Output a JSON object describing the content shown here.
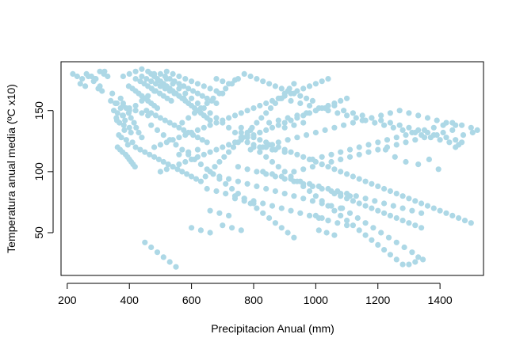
{
  "chart_data": {
    "type": "scatter",
    "title": "",
    "xlabel": "Precipitacion Anual (mm)",
    "ylabel": "Temperatura anual media (ºC x10)",
    "xlim": [
      180,
      1540
    ],
    "ylim": [
      15,
      190
    ],
    "xticks": [
      200,
      400,
      600,
      800,
      1000,
      1200,
      1400
    ],
    "yticks": [
      50,
      100,
      150
    ],
    "grid": false,
    "legend": "none",
    "point_color": "#ADD8E6",
    "points_x": [
      218,
      232,
      248,
      262,
      278,
      292,
      305,
      318,
      242,
      258,
      285,
      300,
      312,
      268,
      290,
      305,
      320,
      330,
      345,
      340,
      355,
      350,
      358,
      362,
      368,
      372,
      378,
      382,
      386,
      366,
      374,
      384,
      390,
      395,
      400,
      405,
      410,
      362,
      370,
      378,
      388,
      394,
      400,
      406,
      412,
      418,
      372,
      380,
      390,
      398,
      405,
      415,
      422,
      430,
      440,
      398,
      410,
      420,
      430,
      440,
      450,
      460,
      470,
      480,
      490,
      420,
      435,
      448,
      460,
      472,
      485,
      498,
      510,
      522,
      535,
      440,
      455,
      470,
      485,
      500,
      515,
      530,
      545,
      560,
      575,
      470,
      480,
      490,
      500,
      510,
      520,
      530,
      540,
      550,
      560,
      570,
      580,
      590,
      600,
      610,
      620,
      630,
      640,
      650,
      660,
      500,
      515,
      530,
      545,
      560,
      575,
      590,
      605,
      620,
      635,
      650,
      665,
      680,
      520,
      540,
      560,
      580,
      600,
      620,
      640,
      660,
      680,
      700,
      455,
      470,
      485,
      500,
      515,
      530,
      545,
      560,
      575,
      590,
      605,
      620,
      635,
      650,
      420,
      435,
      450,
      465,
      480,
      495,
      510,
      525,
      540,
      555,
      570,
      585,
      600,
      615,
      630,
      645,
      660,
      675,
      690,
      705,
      720,
      735,
      750,
      765,
      780,
      795,
      810,
      825,
      840,
      855,
      870,
      885,
      900,
      915,
      930,
      680,
      700,
      720,
      740,
      760,
      780,
      800,
      820,
      840,
      860,
      880,
      900,
      920,
      940,
      960,
      980,
      1000,
      1020,
      1040,
      1060,
      1080,
      1100,
      1120,
      1140,
      1160,
      1180,
      1200,
      1220,
      1240,
      1260,
      1280,
      1300,
      1320,
      1340,
      1360,
      1380,
      1400,
      1420,
      1440,
      1460,
      1480,
      1500,
      700,
      730,
      760,
      790,
      820,
      850,
      880,
      910,
      940,
      970,
      1000,
      1030,
      1060,
      1090,
      1120,
      1150,
      1180,
      1210,
      1240,
      1270,
      1300,
      1330,
      1360,
      1390,
      1420,
      1450,
      760,
      790,
      820,
      850,
      880,
      910,
      940,
      970,
      1000,
      1030,
      1060,
      1090,
      1120,
      1150,
      1180,
      1210,
      1240,
      1270,
      1300,
      1330,
      1360,
      1390,
      1420,
      1450,
      1470,
      800,
      830,
      860,
      890,
      920,
      950,
      980,
      1010,
      1040,
      1070,
      1100,
      1130,
      1160,
      1190,
      1220,
      1250,
      1280,
      1310,
      1340,
      1370,
      1400,
      1430,
      1460,
      840,
      870,
      900,
      930,
      960,
      990,
      1020,
      1050,
      1080,
      1110,
      1140,
      1170,
      1200,
      1230,
      1260,
      1290,
      1320,
      1350,
      1380,
      1410,
      1440,
      900,
      930,
      960,
      990,
      1020,
      1050,
      1080,
      1110,
      1140,
      1170,
      1200,
      1230,
      1260,
      1290,
      1320,
      1350,
      1380,
      1410,
      1440,
      1470,
      1500,
      1520,
      1505,
      1475,
      1450,
      1395,
      1365,
      1330,
      1290,
      1255,
      1225,
      560,
      590,
      620,
      650,
      680,
      710,
      740,
      770,
      800,
      830,
      860,
      890,
      920,
      950,
      980,
      1010,
      1040,
      1070,
      1100,
      600,
      630,
      660,
      690,
      720,
      750,
      780,
      810,
      840,
      870,
      900,
      930,
      960,
      990,
      1020,
      1050,
      1080,
      660,
      690,
      720,
      750,
      780,
      810,
      840,
      870,
      900,
      930,
      960,
      990,
      1020,
      1050,
      1080,
      1110,
      740,
      770,
      800,
      830,
      860,
      890,
      920,
      950,
      980,
      1010,
      1040,
      1070,
      1100,
      1130,
      1160,
      1190,
      1220,
      1250,
      1280,
      1310,
      1340,
      1000,
      1020,
      1040,
      1060,
      1080,
      1100,
      1120,
      1140,
      1160,
      1180,
      1200,
      1220,
      1240,
      1260,
      1280,
      1300,
      1320,
      1340,
      1010,
      1035,
      1060,
      1085,
      1110,
      1135,
      1160,
      1185,
      1210,
      1235,
      1260,
      1285,
      1310,
      1330,
      1345,
      1320,
      1300,
      1280,
      1260,
      1240,
      1220,
      1200,
      1180,
      1160,
      1140,
      1120,
      1100,
      1080,
      1060,
      1040,
      1020,
      1000,
      980,
      960,
      940,
      920,
      900,
      880,
      860,
      840,
      820,
      800,
      780,
      760,
      740,
      720,
      700,
      680,
      660,
      640,
      620,
      600,
      580,
      560,
      540,
      520,
      500,
      480,
      460,
      440,
      420,
      400,
      380,
      360,
      470,
      490,
      510,
      530,
      550,
      570,
      590,
      610,
      630,
      650,
      670,
      690,
      710,
      730,
      750,
      770,
      790,
      810,
      830,
      850,
      870,
      890,
      910,
      930,
      450,
      470,
      490,
      510,
      530,
      550,
      570,
      590,
      610,
      630,
      650,
      670,
      690,
      710,
      730,
      750,
      770,
      790,
      810,
      830,
      850,
      870,
      890,
      910,
      930,
      950,
      970,
      990,
      360,
      380,
      400,
      420,
      440,
      460,
      480,
      500,
      520,
      540,
      560,
      580,
      600,
      620,
      640,
      660,
      680,
      700,
      720,
      740,
      760,
      780,
      800,
      820,
      840,
      860,
      880,
      900,
      920,
      940,
      960,
      980,
      1000,
      1020,
      1040,
      380,
      400,
      420,
      440,
      460,
      480,
      500,
      520,
      540,
      560,
      580,
      600,
      620,
      640,
      660,
      680,
      700,
      720,
      740,
      760,
      780,
      800,
      820,
      840,
      860,
      880,
      900,
      920,
      940,
      960,
      980,
      1000,
      1020,
      1040,
      1060,
      1080,
      1100
    ],
    "points_y": [
      180,
      178,
      176,
      180,
      178,
      176,
      182,
      180,
      172,
      170,
      174,
      168,
      166,
      178,
      176,
      170,
      182,
      178,
      164,
      158,
      156,
      150,
      144,
      148,
      140,
      152,
      146,
      138,
      142,
      130,
      128,
      134,
      126,
      122,
      136,
      132,
      124,
      120,
      118,
      116,
      114,
      112,
      110,
      108,
      106,
      104,
      160,
      156,
      152,
      148,
      144,
      140,
      136,
      132,
      128,
      170,
      168,
      166,
      164,
      162,
      160,
      158,
      156,
      154,
      152,
      176,
      174,
      172,
      170,
      168,
      166,
      164,
      162,
      160,
      158,
      178,
      176,
      174,
      172,
      170,
      168,
      166,
      164,
      162,
      160,
      180,
      178,
      176,
      174,
      172,
      170,
      168,
      166,
      164,
      162,
      160,
      158,
      156,
      154,
      152,
      150,
      148,
      146,
      144,
      142,
      180,
      178,
      176,
      174,
      172,
      170,
      168,
      166,
      164,
      162,
      160,
      158,
      156,
      182,
      180,
      178,
      176,
      174,
      172,
      170,
      168,
      166,
      164,
      150,
      148,
      146,
      144,
      142,
      140,
      138,
      136,
      134,
      132,
      130,
      128,
      126,
      124,
      120,
      118,
      116,
      114,
      112,
      110,
      108,
      106,
      104,
      102,
      100,
      98,
      96,
      94,
      92,
      96,
      100,
      104,
      108,
      112,
      116,
      120,
      124,
      128,
      132,
      136,
      140,
      144,
      148,
      152,
      156,
      160,
      164,
      168,
      172,
      176,
      174,
      172,
      175,
      132,
      130,
      128,
      126,
      124,
      122,
      120,
      118,
      116,
      114,
      112,
      110,
      108,
      106,
      104,
      102,
      100,
      98,
      96,
      94,
      92,
      90,
      88,
      86,
      84,
      82,
      80,
      78,
      76,
      74,
      72,
      70,
      68,
      66,
      64,
      62,
      60,
      58,
      56,
      54,
      52,
      118,
      120,
      122,
      124,
      126,
      128,
      130,
      132,
      134,
      136,
      138,
      140,
      142,
      144,
      146,
      148,
      150,
      148,
      146,
      144,
      142,
      140,
      138,
      136,
      134,
      132,
      140,
      142,
      144,
      146,
      148,
      150,
      152,
      154,
      150,
      148,
      146,
      144,
      142,
      140,
      138,
      136,
      134,
      132,
      130,
      128,
      126,
      124,
      122,
      120,
      118,
      160,
      158,
      156,
      154,
      152,
      150,
      148,
      146,
      144,
      142,
      140,
      138,
      136,
      134,
      132,
      130,
      128,
      126,
      124,
      122,
      120,
      118,
      116,
      100,
      102,
      104,
      106,
      108,
      110,
      112,
      114,
      116,
      118,
      120,
      122,
      124,
      126,
      128,
      130,
      132,
      134,
      136,
      138,
      140,
      110,
      112,
      114,
      116,
      118,
      120,
      122,
      124,
      126,
      128,
      130,
      132,
      134,
      136,
      138,
      140,
      138,
      136,
      134,
      132,
      130,
      120,
      102,
      110,
      106,
      108,
      112,
      118,
      114,
      116,
      118,
      86,
      84,
      82,
      80,
      78,
      76,
      74,
      72,
      70,
      68,
      66,
      64,
      62,
      60,
      58,
      56,
      54,
      52,
      50,
      96,
      94,
      92,
      90,
      88,
      86,
      84,
      82,
      80,
      78,
      76,
      74,
      72,
      70,
      68,
      66,
      64,
      104,
      102,
      100,
      98,
      96,
      94,
      92,
      90,
      88,
      86,
      84,
      82,
      80,
      78,
      76,
      74,
      100,
      98,
      96,
      94,
      92,
      90,
      88,
      86,
      84,
      82,
      80,
      78,
      76,
      74,
      72,
      70,
      68,
      66,
      64,
      62,
      60,
      82,
      80,
      78,
      76,
      74,
      72,
      70,
      68,
      66,
      64,
      62,
      60,
      58,
      56,
      54,
      52,
      50,
      48,
      70,
      66,
      62,
      58,
      54,
      50,
      46,
      42,
      38,
      34,
      30,
      28,
      26,
      24,
      24,
      28,
      32,
      36,
      40,
      44,
      48,
      52,
      56,
      60,
      64,
      68,
      72,
      76,
      80,
      84,
      88,
      92,
      96,
      100,
      104,
      108,
      112,
      116,
      120,
      124,
      128,
      132,
      136,
      140,
      144,
      148,
      152,
      156,
      160,
      164,
      168,
      172,
      176,
      170,
      166,
      162,
      158,
      154,
      150,
      146,
      142,
      138,
      134,
      130,
      126,
      122,
      118,
      114,
      110,
      106,
      102,
      98,
      94,
      90,
      86,
      82,
      78,
      74,
      70,
      66,
      62,
      58,
      54,
      50,
      46,
      42,
      38,
      34,
      30,
      26,
      22,
      140,
      144,
      148,
      152,
      156,
      160,
      164,
      168,
      172,
      176,
      180,
      178,
      176,
      174,
      172,
      170,
      168,
      166,
      164,
      162,
      160,
      158,
      156,
      154,
      152,
      150,
      148,
      146,
      120,
      122,
      124,
      126,
      128,
      130,
      132,
      134,
      136,
      138,
      140,
      142,
      144,
      146,
      148,
      150,
      152,
      154,
      156,
      158,
      160,
      162,
      164,
      166,
      168,
      170,
      172,
      174,
      176,
      178,
      180,
      182,
      184,
      182,
      180,
      100,
      102,
      104,
      106,
      108,
      110,
      112,
      114,
      116,
      118,
      120,
      122,
      124,
      126,
      128,
      130,
      132,
      134,
      136,
      138,
      140,
      142,
      144,
      146,
      148,
      150,
      152,
      154,
      156,
      158,
      160,
      162,
      164,
      166,
      168,
      170,
      172
    ]
  }
}
